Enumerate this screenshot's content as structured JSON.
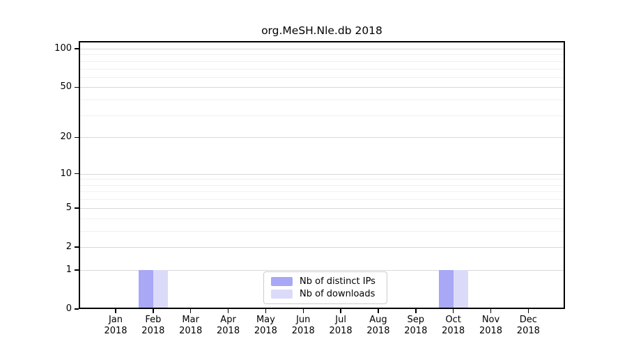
{
  "figure": {
    "background": "#ffffff",
    "frame_color": "#000000",
    "grid_major_color": "#d8d8d8",
    "grid_minor_color": "#f0f0f0",
    "text_color": "#000000",
    "legend_border_color": "#cccccc"
  },
  "chart_data": {
    "type": "bar",
    "title": "org.MeSH.Nle.db 2018",
    "categories": [
      "Jan",
      "Feb",
      "Mar",
      "Apr",
      "May",
      "Jun",
      "Jul",
      "Aug",
      "Sep",
      "Oct",
      "Nov",
      "Dec"
    ],
    "year_label": "2018",
    "series": [
      {
        "name": "Nb of distinct IPs",
        "color": "#a8a8f6",
        "values": [
          0,
          1,
          0,
          0,
          0,
          0,
          0,
          0,
          0,
          1,
          0,
          0
        ]
      },
      {
        "name": "Nb of downloads",
        "color": "#dbdbf9",
        "values": [
          0,
          1,
          0,
          0,
          0,
          0,
          0,
          0,
          0,
          1,
          0,
          0
        ]
      }
    ],
    "xlabel": "",
    "ylabel": "",
    "y_scale": "log1p",
    "y_ticks": [
      0,
      1,
      2,
      5,
      10,
      20,
      50,
      100
    ],
    "y_minor_gridlines": [
      3,
      4,
      6,
      7,
      8,
      9,
      30,
      40,
      60,
      70,
      80,
      90
    ],
    "ylim": [
      0,
      114
    ],
    "grid": "horizontal",
    "legend_position": "lower center"
  }
}
